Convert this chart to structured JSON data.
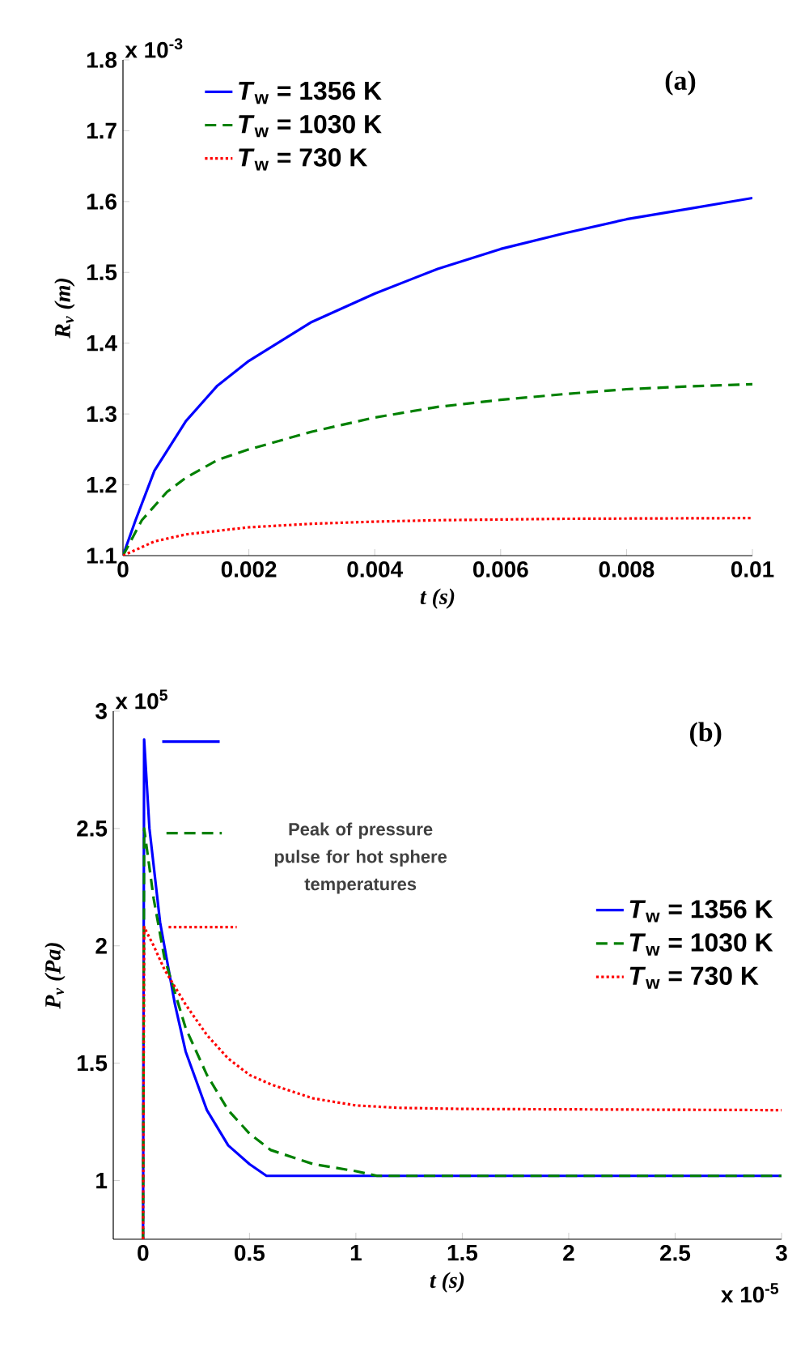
{
  "chart_data": [
    {
      "type": "line",
      "title": "(a)",
      "xlabel": "t (s)",
      "ylabel": "R$_{v}$ (m)",
      "annotations": [
        "x 10$^{-3}$"
      ],
      "xlim": [
        0,
        0.01
      ],
      "ylim": [
        1.1,
        1.8
      ],
      "xticks": [
        0,
        0.002,
        0.004,
        0.006,
        0.008,
        0.01
      ],
      "yticks": [
        1.1,
        1.2,
        1.3,
        1.4,
        1.5,
        1.6,
        1.7,
        1.8
      ],
      "legend": "top left",
      "marker": "none",
      "series": [
        {
          "name": "*T*$_{w}$ = 1356 K",
          "color": "#0000ff",
          "line_style": "solid",
          "x": [
            0,
            0.0002,
            0.0005,
            0.001,
            0.0015,
            0.002,
            0.003,
            0.004,
            0.005,
            0.006,
            0.007,
            0.008,
            0.009,
            0.01
          ],
          "values": [
            1.1,
            1.15,
            1.22,
            1.29,
            1.34,
            1.375,
            1.43,
            1.47,
            1.505,
            1.533,
            1.555,
            1.575,
            1.59,
            1.605
          ]
        },
        {
          "name": "*T*$_{w}$ = 1030 K",
          "color": "#008000",
          "line_style": "dashed",
          "x": [
            0,
            0.0003,
            0.0007,
            0.001,
            0.0015,
            0.002,
            0.003,
            0.004,
            0.005,
            0.006,
            0.007,
            0.008,
            0.009,
            0.01
          ],
          "values": [
            1.1,
            1.15,
            1.19,
            1.21,
            1.235,
            1.25,
            1.275,
            1.295,
            1.31,
            1.32,
            1.328,
            1.335,
            1.339,
            1.342
          ]
        },
        {
          "name": "*T*$_{w}$ = 730 K",
          "color": "#ff0000",
          "line_style": "dotted",
          "x": [
            0,
            0.0005,
            0.001,
            0.002,
            0.003,
            0.004,
            0.005,
            0.007,
            0.01
          ],
          "values": [
            1.1,
            1.12,
            1.13,
            1.14,
            1.145,
            1.148,
            1.15,
            1.152,
            1.153
          ]
        }
      ]
    },
    {
      "type": "line",
      "title": "(b)",
      "xlabel": "t (s)",
      "ylabel": "P$_{v}$  (Pa)",
      "annotations": [
        "x 10$^{5}$",
        "x 10$^{-5}$",
        "Peak of pressure pulse for hot sphere temperatures"
      ],
      "xlim": [
        -0.14,
        3
      ],
      "ylim": [
        0.75,
        3
      ],
      "xticks": [
        0,
        0.5,
        1,
        1.5,
        2,
        2.5,
        3
      ],
      "yticks": [
        1,
        1.5,
        2,
        2.5,
        3
      ],
      "legend": "right",
      "marker": "none",
      "series": [
        {
          "name": "*T*$_{w}$ = 1356 K",
          "color": "#0000ff",
          "line_style": "solid",
          "x": [
            0,
            0.005,
            0.03,
            0.08,
            0.15,
            0.2,
            0.3,
            0.4,
            0.5,
            0.58,
            3
          ],
          "values": [
            0.75,
            2.88,
            2.5,
            2.1,
            1.75,
            1.55,
            1.3,
            1.15,
            1.07,
            1.02,
            1.02
          ]
        },
        {
          "name": "*T*$_{w}$ = 1030 K",
          "color": "#008000",
          "line_style": "dashed",
          "x": [
            0,
            0.005,
            0.05,
            0.1,
            0.2,
            0.3,
            0.4,
            0.5,
            0.6,
            0.8,
            1.0,
            1.1,
            3
          ],
          "values": [
            0.75,
            2.5,
            2.2,
            1.95,
            1.65,
            1.45,
            1.3,
            1.2,
            1.13,
            1.07,
            1.04,
            1.02,
            1.02
          ]
        },
        {
          "name": "*T*$_{w}$ = 730 K",
          "color": "#ff0000",
          "line_style": "dotted",
          "x": [
            0,
            0.005,
            0.05,
            0.1,
            0.2,
            0.3,
            0.4,
            0.5,
            0.6,
            0.8,
            1.0,
            1.2,
            1.5,
            3
          ],
          "values": [
            0.75,
            2.08,
            2.0,
            1.9,
            1.75,
            1.62,
            1.52,
            1.45,
            1.41,
            1.35,
            1.32,
            1.31,
            1.305,
            1.3
          ]
        },
        {
          "color": "#0000ff",
          "line_style": "solid",
          "x": [
            0.09,
            0.36
          ],
          "values": [
            2.87,
            2.87
          ]
        },
        {
          "color": "#008000",
          "line_style": "dashed",
          "x": [
            0.11,
            0.37
          ],
          "values": [
            2.48,
            2.48
          ]
        },
        {
          "color": "#ff0000",
          "line_style": "dotted",
          "x": [
            0.12,
            0.44
          ],
          "values": [
            2.08,
            2.08
          ]
        }
      ]
    }
  ]
}
